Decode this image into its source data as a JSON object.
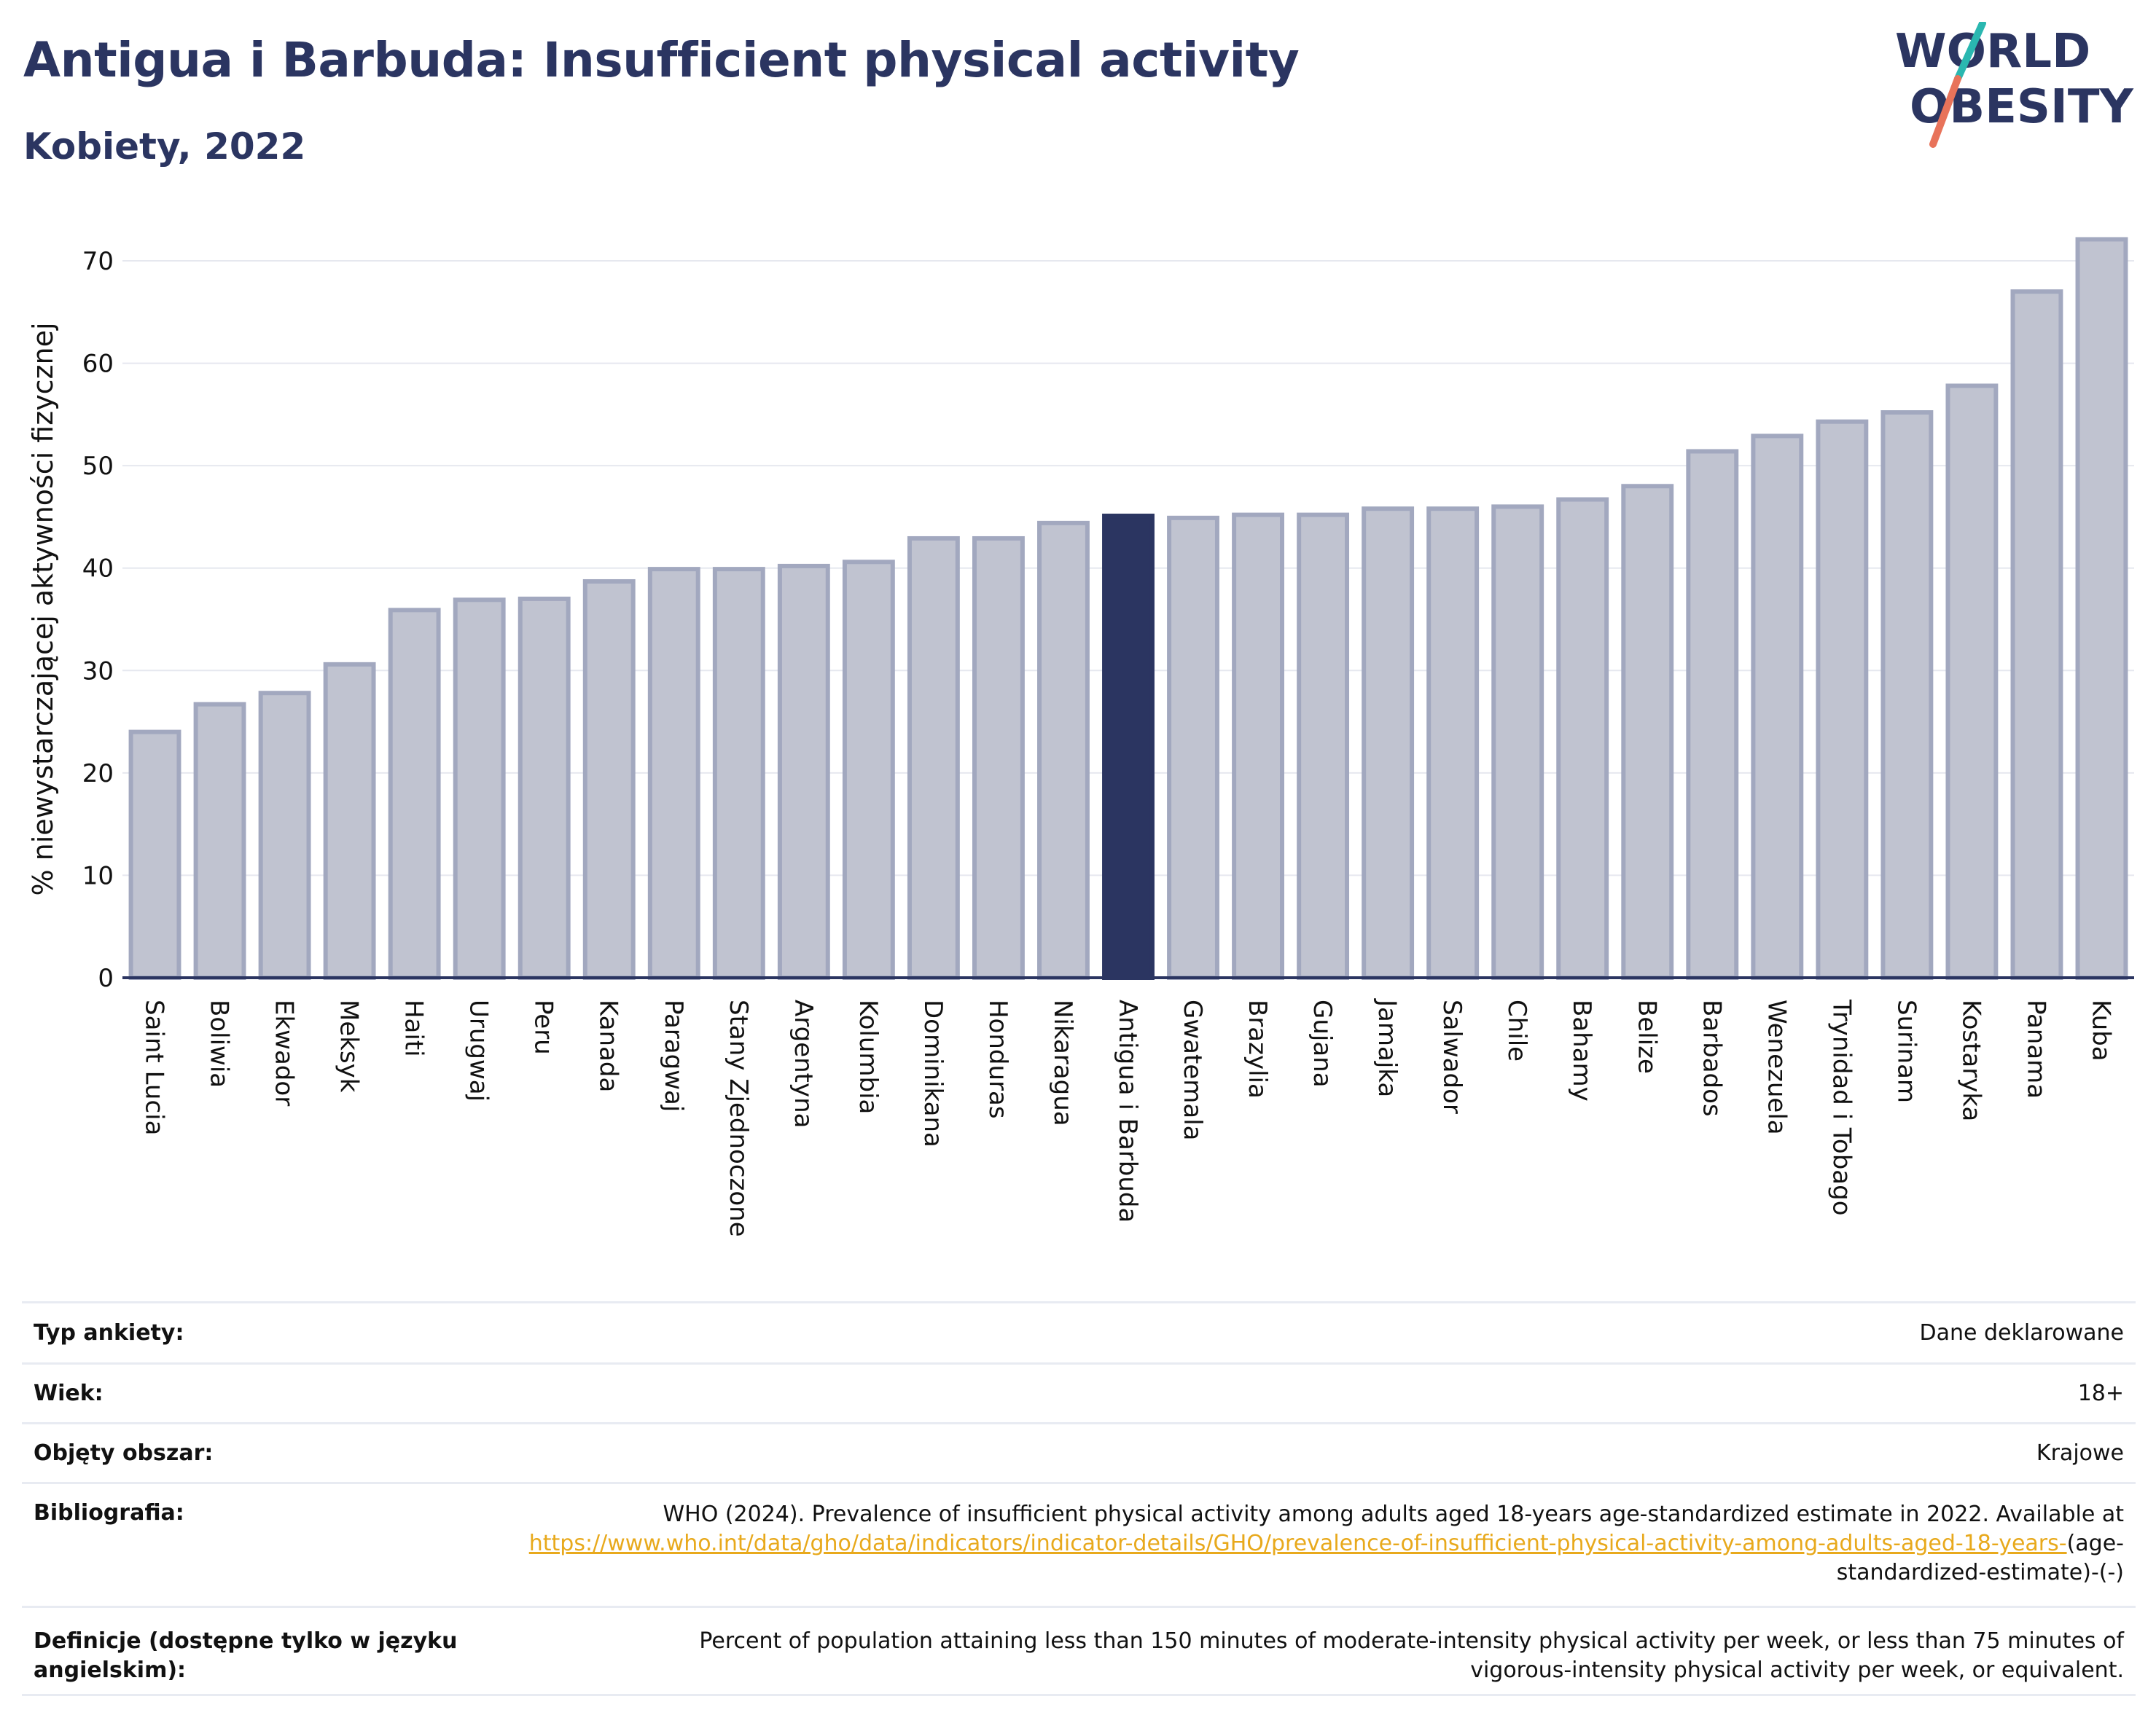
{
  "header": {
    "title": "Antigua i Barbuda: Insufficient physical activity",
    "subtitle": "Kobiety, 2022"
  },
  "logo": {
    "line1": "WORLD",
    "line2": "OBESITY"
  },
  "colors": {
    "bar": "#c0c3d0",
    "bar_stroke": "#a2a8bf",
    "highlight": "#2b3561",
    "title": "#2b3561",
    "link": "#e8a91c",
    "logo_teal": "#2ab7b0",
    "logo_coral": "#e8735a"
  },
  "chart_data": {
    "type": "bar",
    "ylabel": "% niewystarczającej aktywności fizycznej",
    "ylim": [
      0,
      73
    ],
    "yticks": [
      0,
      10,
      20,
      30,
      40,
      50,
      60,
      70
    ],
    "grid": true,
    "highlight": "Antigua i Barbuda",
    "categories": [
      "Saint Lucia",
      "Boliwia",
      "Ekwador",
      "Meksyk",
      "Haiti",
      "Urugwaj",
      "Peru",
      "Kanada",
      "Paragwaj",
      "Stany Zjednoczone",
      "Argentyna",
      "Kolumbia",
      "Dominikana",
      "Honduras",
      "Nikaragua",
      "Antigua i Barbuda",
      "Gwatemala",
      "Brazylia",
      "Gujana",
      "Jamajka",
      "Salwador",
      "Chile",
      "Bahamy",
      "Belize",
      "Barbados",
      "Wenezuela",
      "Trynidad i Tobago",
      "Surinam",
      "Kostaryka",
      "Panama",
      "Kuba"
    ],
    "values": [
      24.0,
      26.7,
      27.8,
      30.6,
      35.9,
      36.9,
      37.0,
      38.7,
      39.9,
      39.9,
      40.2,
      40.6,
      42.9,
      42.9,
      44.4,
      45.1,
      44.9,
      45.2,
      45.2,
      45.8,
      45.8,
      46.0,
      46.7,
      48.0,
      51.4,
      52.9,
      54.3,
      55.2,
      57.8,
      67.0,
      72.1
    ]
  },
  "info": [
    {
      "key": "Typ ankiety:",
      "value": "Dane deklarowane"
    },
    {
      "key": "Wiek:",
      "value": "18+"
    },
    {
      "key": "Objęty obszar:",
      "value": "Krajowe"
    },
    {
      "key": "Bibliografia:",
      "value_prefix": "WHO (2024). Prevalence of insufficient physical activity among adults aged 18-years age-standardized estimate in 2022. Available at",
      "link": "https://www.who.int/data/gho/data/indicators/indicator-details/GHO/prevalence-of-insufficient-physical-activity-among-adults-aged-18-years-",
      "value_suffix": "(age-standardized-estimate)-(-)"
    },
    {
      "key": "Definicje (dostępne tylko w języku angielskim):",
      "value": "Percent of population attaining less than 150 minutes of moderate-intensity physical activity per week, or less than 75 minutes of vigorous-intensity physical activity per week, or equivalent."
    }
  ]
}
